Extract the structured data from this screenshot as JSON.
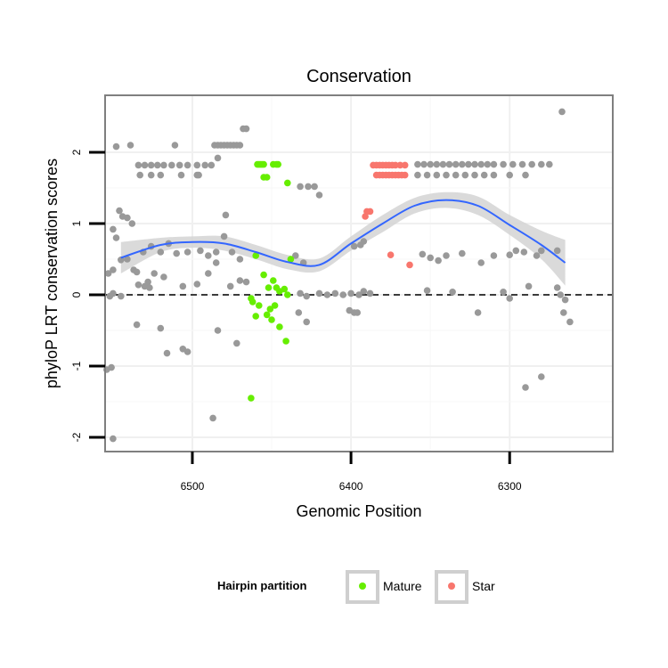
{
  "chart_data": {
    "type": "scatter",
    "title": "Conservation",
    "xlabel": "Genomic Position",
    "ylabel": "phyloP LRT conservation scores",
    "x_reversed": true,
    "xlim": [
      6235,
      6555
    ],
    "ylim": [
      -2.2,
      2.8
    ],
    "x_ticks": [
      6500,
      6400,
      6300
    ],
    "y_ticks": [
      -2,
      -1,
      0,
      1,
      2
    ],
    "grid": true,
    "reference_line": {
      "y": 0,
      "style": "dashed"
    },
    "legend": {
      "title": "Hairpin partition",
      "position": "bottom",
      "entries": [
        {
          "label": "Mature",
          "color": "#66ee00"
        },
        {
          "label": "Star",
          "color": "#f8766d"
        }
      ]
    },
    "colors": {
      "other": "#999999",
      "mature": "#66ee00",
      "star": "#f8766d",
      "smooth": "#3366ff",
      "ribbon": "#d3d3d3"
    },
    "smooth_curve": {
      "x": [
        6545,
        6520,
        6500,
        6480,
        6460,
        6440,
        6420,
        6400,
        6380,
        6360,
        6340,
        6320,
        6300,
        6280,
        6265
      ],
      "y": [
        0.52,
        0.7,
        0.74,
        0.72,
        0.6,
        0.46,
        0.42,
        0.72,
        1.0,
        1.25,
        1.33,
        1.25,
        0.98,
        0.7,
        0.45
      ],
      "lower": [
        0.3,
        0.6,
        0.66,
        0.62,
        0.5,
        0.36,
        0.33,
        0.62,
        0.88,
        1.14,
        1.22,
        1.12,
        0.84,
        0.5,
        0.13
      ],
      "upper": [
        0.74,
        0.8,
        0.82,
        0.82,
        0.7,
        0.56,
        0.51,
        0.82,
        1.12,
        1.36,
        1.44,
        1.38,
        1.12,
        0.9,
        0.77
      ]
    },
    "series": [
      {
        "name": "Mature",
        "points": [
          [
            6459,
            1.83
          ],
          [
            6458,
            1.83
          ],
          [
            6457,
            1.83
          ],
          [
            6456,
            1.83
          ],
          [
            6455,
            1.83
          ],
          [
            6449,
            1.83
          ],
          [
            6447,
            1.83
          ],
          [
            6446,
            1.83
          ],
          [
            6455,
            1.65
          ],
          [
            6453,
            1.65
          ],
          [
            6440,
            1.57
          ],
          [
            6460,
            0.55
          ],
          [
            6438,
            0.5
          ],
          [
            6455,
            0.28
          ],
          [
            6449,
            0.2
          ],
          [
            6447,
            0.1
          ],
          [
            6452,
            0.1
          ],
          [
            6445,
            0.05
          ],
          [
            6442,
            0.08
          ],
          [
            6440,
            0.0
          ],
          [
            6463,
            -0.05
          ],
          [
            6462,
            -0.1
          ],
          [
            6458,
            -0.15
          ],
          [
            6448,
            -0.15
          ],
          [
            6451,
            -0.2
          ],
          [
            6460,
            -0.3
          ],
          [
            6453,
            -0.28
          ],
          [
            6450,
            -0.35
          ],
          [
            6445,
            -0.45
          ],
          [
            6441,
            -0.65
          ],
          [
            6463,
            -1.45
          ]
        ]
      },
      {
        "name": "Star",
        "points": [
          [
            6386,
            1.82
          ],
          [
            6384,
            1.82
          ],
          [
            6382,
            1.82
          ],
          [
            6380,
            1.82
          ],
          [
            6378,
            1.82
          ],
          [
            6376,
            1.82
          ],
          [
            6374,
            1.82
          ],
          [
            6372,
            1.82
          ],
          [
            6369,
            1.82
          ],
          [
            6366,
            1.82
          ],
          [
            6384,
            1.68
          ],
          [
            6382,
            1.68
          ],
          [
            6380,
            1.68
          ],
          [
            6378,
            1.68
          ],
          [
            6376,
            1.68
          ],
          [
            6374,
            1.68
          ],
          [
            6372,
            1.68
          ],
          [
            6370,
            1.68
          ],
          [
            6368,
            1.68
          ],
          [
            6366,
            1.68
          ],
          [
            6390,
            1.17
          ],
          [
            6388,
            1.17
          ],
          [
            6391,
            1.1
          ],
          [
            6375,
            0.56
          ],
          [
            6363,
            0.42
          ]
        ]
      },
      {
        "name": "",
        "points": [
          [
            6548,
            2.08
          ],
          [
            6539,
            2.1
          ],
          [
            6511,
            2.1
          ],
          [
            6486,
            2.1
          ],
          [
            6484,
            2.1
          ],
          [
            6482,
            2.1
          ],
          [
            6480,
            2.1
          ],
          [
            6478,
            2.1
          ],
          [
            6476,
            2.1
          ],
          [
            6474,
            2.1
          ],
          [
            6472,
            2.1
          ],
          [
            6470,
            2.1
          ],
          [
            6468,
            2.33
          ],
          [
            6466,
            2.33
          ],
          [
            6484,
            1.92
          ],
          [
            6267,
            2.57
          ],
          [
            6534,
            1.82
          ],
          [
            6530,
            1.82
          ],
          [
            6526,
            1.82
          ],
          [
            6522,
            1.82
          ],
          [
            6518,
            1.82
          ],
          [
            6513,
            1.82
          ],
          [
            6508,
            1.82
          ],
          [
            6503,
            1.82
          ],
          [
            6497,
            1.82
          ],
          [
            6492,
            1.82
          ],
          [
            6488,
            1.82
          ],
          [
            6533,
            1.68
          ],
          [
            6526,
            1.68
          ],
          [
            6520,
            1.68
          ],
          [
            6507,
            1.68
          ],
          [
            6497,
            1.68
          ],
          [
            6496,
            1.68
          ],
          [
            6432,
            1.52
          ],
          [
            6427,
            1.52
          ],
          [
            6423,
            1.52
          ],
          [
            6420,
            1.4
          ],
          [
            6358,
            1.83
          ],
          [
            6354,
            1.83
          ],
          [
            6350,
            1.83
          ],
          [
            6346,
            1.83
          ],
          [
            6342,
            1.83
          ],
          [
            6338,
            1.83
          ],
          [
            6334,
            1.83
          ],
          [
            6330,
            1.83
          ],
          [
            6326,
            1.83
          ],
          [
            6322,
            1.83
          ],
          [
            6318,
            1.83
          ],
          [
            6314,
            1.83
          ],
          [
            6310,
            1.83
          ],
          [
            6304,
            1.83
          ],
          [
            6298,
            1.83
          ],
          [
            6292,
            1.83
          ],
          [
            6286,
            1.83
          ],
          [
            6280,
            1.83
          ],
          [
            6275,
            1.83
          ],
          [
            6358,
            1.68
          ],
          [
            6352,
            1.68
          ],
          [
            6346,
            1.68
          ],
          [
            6340,
            1.68
          ],
          [
            6334,
            1.68
          ],
          [
            6328,
            1.68
          ],
          [
            6322,
            1.68
          ],
          [
            6316,
            1.68
          ],
          [
            6310,
            1.68
          ],
          [
            6300,
            1.68
          ],
          [
            6290,
            1.68
          ],
          [
            6546,
            1.18
          ],
          [
            6544,
            1.1
          ],
          [
            6541,
            1.08
          ],
          [
            6538,
            1.0
          ],
          [
            6550,
            0.92
          ],
          [
            6548,
            0.8
          ],
          [
            6479,
            1.12
          ],
          [
            6545,
            0.49
          ],
          [
            6550,
            0.35
          ],
          [
            6541,
            0.5
          ],
          [
            6537,
            0.35
          ],
          [
            6531,
            0.6
          ],
          [
            6526,
            0.68
          ],
          [
            6520,
            0.6
          ],
          [
            6515,
            0.72
          ],
          [
            6510,
            0.58
          ],
          [
            6503,
            0.6
          ],
          [
            6495,
            0.62
          ],
          [
            6490,
            0.55
          ],
          [
            6485,
            0.6
          ],
          [
            6480,
            0.82
          ],
          [
            6475,
            0.6
          ],
          [
            6470,
            0.5
          ],
          [
            6553,
            0.3
          ],
          [
            6550,
            0.02
          ],
          [
            6552,
            -0.02
          ],
          [
            6535,
            0.32
          ],
          [
            6528,
            0.18
          ],
          [
            6524,
            0.3
          ],
          [
            6518,
            0.25
          ],
          [
            6506,
            0.12
          ],
          [
            6497,
            0.15
          ],
          [
            6490,
            0.3
          ],
          [
            6485,
            0.45
          ],
          [
            6476,
            0.12
          ],
          [
            6470,
            0.2
          ],
          [
            6466,
            0.18
          ],
          [
            6534,
            0.14
          ],
          [
            6530,
            0.12
          ],
          [
            6527,
            0.1
          ],
          [
            6545,
            -0.02
          ],
          [
            6535,
            -0.42
          ],
          [
            6520,
            -0.47
          ],
          [
            6506,
            -0.76
          ],
          [
            6503,
            -0.8
          ],
          [
            6516,
            -0.82
          ],
          [
            6484,
            -0.5
          ],
          [
            6472,
            -0.68
          ],
          [
            6554,
            -1.05
          ],
          [
            6551,
            -1.02
          ],
          [
            6487,
            -1.73
          ],
          [
            6550,
            -2.02
          ],
          [
            6435,
            0.55
          ],
          [
            6430,
            0.45
          ],
          [
            6432,
            0.02
          ],
          [
            6428,
            -0.02
          ],
          [
            6433,
            -0.25
          ],
          [
            6428,
            -0.38
          ],
          [
            6420,
            0.02
          ],
          [
            6415,
            0.0
          ],
          [
            6410,
            0.02
          ],
          [
            6405,
            0.0
          ],
          [
            6400,
            0.02
          ],
          [
            6395,
            0.0
          ],
          [
            6392,
            0.05
          ],
          [
            6388,
            0.02
          ],
          [
            6398,
            -0.25
          ],
          [
            6396,
            -0.25
          ],
          [
            6401,
            -0.22
          ],
          [
            6398,
            0.68
          ],
          [
            6392,
            0.75
          ],
          [
            6394,
            0.7
          ],
          [
            6355,
            0.57
          ],
          [
            6350,
            0.52
          ],
          [
            6345,
            0.48
          ],
          [
            6340,
            0.55
          ],
          [
            6352,
            0.06
          ],
          [
            6336,
            0.04
          ],
          [
            6330,
            0.58
          ],
          [
            6318,
            0.45
          ],
          [
            6310,
            0.55
          ],
          [
            6300,
            0.56
          ],
          [
            6296,
            0.62
          ],
          [
            6291,
            0.6
          ],
          [
            6283,
            0.55
          ],
          [
            6280,
            0.62
          ],
          [
            6270,
            0.62
          ],
          [
            6320,
            -0.25
          ],
          [
            6304,
            0.04
          ],
          [
            6300,
            -0.05
          ],
          [
            6288,
            0.12
          ],
          [
            6270,
            0.1
          ],
          [
            6268,
            0.0
          ],
          [
            6265,
            -0.07
          ],
          [
            6266,
            -0.25
          ],
          [
            6262,
            -0.38
          ],
          [
            6290,
            -1.3
          ],
          [
            6280,
            -1.15
          ]
        ]
      }
    ]
  }
}
